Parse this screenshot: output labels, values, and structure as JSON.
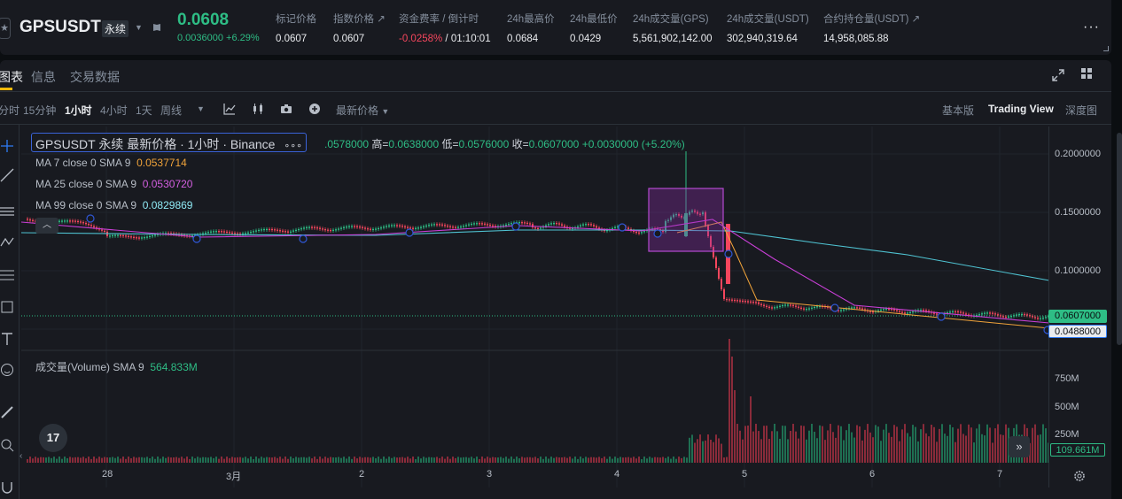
{
  "header": {
    "symbol": "GPSUSDT",
    "contract_type": "永续",
    "last_price": "0.0608",
    "change": "0.0036000 +6.29%",
    "stats": [
      {
        "label": "标记价格",
        "value": "0.0607"
      },
      {
        "label": "指数价格 ↗",
        "value": "0.0607"
      },
      {
        "label": "资金费率 / 倒计时",
        "value_neg": "-0.0258%",
        "value_rest": " / 01:10:01"
      },
      {
        "label": "24h最高价",
        "value": "0.0684"
      },
      {
        "label": "24h最低价",
        "value": "0.0429"
      },
      {
        "label": "24h成交量(GPS)",
        "value": "5,561,902,142.00"
      },
      {
        "label": "24h成交量(USDT)",
        "value": "302,940,319.64"
      },
      {
        "label": "合约持仓量(USDT) ↗",
        "value": "14,958,085.88"
      }
    ],
    "more": "···"
  },
  "tabs": {
    "chart": "图表",
    "info": "信息",
    "trading_data": "交易数据"
  },
  "toolbar": {
    "time_label": "分时",
    "intervals": [
      "15分钟",
      "1小时",
      "4小时",
      "1天",
      "周线"
    ],
    "active_interval": "1小时",
    "price_type": "最新价格",
    "views": [
      "基本版",
      "Trading View",
      "深度图"
    ]
  },
  "legend": {
    "title": "GPSUSDT 永续 最新价格 · 1小时 · Binance",
    "dots": "∘∘∘",
    "ohlc_open": ".0578000",
    "ohlc_high_label": "高=",
    "ohlc_high": "0.0638000",
    "ohlc_low_label": "低=",
    "ohlc_low": "0.0576000",
    "ohlc_close_label": "收=",
    "ohlc_close": "0.0607000",
    "ohlc_change": "+0.0030000 (+5.20%)",
    "ma": [
      {
        "label": "MA 7 close 0 SMA 9",
        "value": "0.0537714",
        "color": "#f0a33a"
      },
      {
        "label": "MA 25 close 0 SMA 9",
        "value": "0.0530720",
        "color": "#c83fd6"
      },
      {
        "label": "MA 99 close 0 SMA 9",
        "value": "0.0829869",
        "color": "#5fd8e8"
      }
    ],
    "volume_label": "成交量(Volume) SMA 9",
    "volume_value": "564.833M"
  },
  "axis": {
    "price_ticks": [
      "0.2000000",
      "0.1500000",
      "0.1000000"
    ],
    "current_price_tag": "0.0607000",
    "low_tag": "0.0488000",
    "volume_ticks": [
      "750M",
      "500M",
      "250M"
    ],
    "volume_tag": "109.661M",
    "x_ticks": [
      "28",
      "3月",
      "2",
      "3",
      "4",
      "5",
      "6",
      "7"
    ]
  },
  "colors": {
    "up": "#2ebd85",
    "down": "#f6465d",
    "accent": "#f0b90b",
    "box": "#8b2fa8"
  }
}
